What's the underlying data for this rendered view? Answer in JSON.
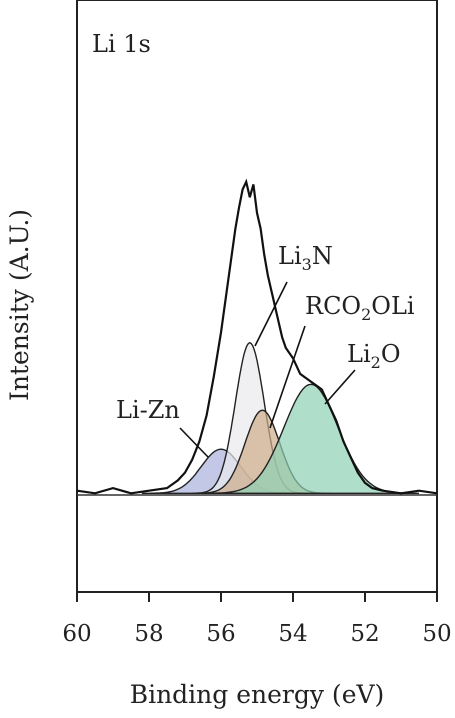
{
  "chart_data": {
    "type": "area",
    "panel_label": "Li 1s",
    "xlabel": "Binding energy (eV)",
    "ylabel": "Intensity (A.U.)",
    "xlim": [
      60,
      50
    ],
    "x_reversed": true,
    "x_ticks": [
      60,
      58,
      56,
      54,
      52,
      50
    ],
    "ylim": [
      -0.38,
      1.9
    ],
    "baseline": 0,
    "grid": false,
    "series": [
      {
        "name": "Li-Zn",
        "center": 56.0,
        "height": 0.17,
        "sigma": 0.55,
        "color": "#a9b0dd"
      },
      {
        "name": "Li3N",
        "center": 55.2,
        "height": 0.58,
        "sigma": 0.4,
        "color": "#e9e9ec"
      },
      {
        "name": "RCO2OLi",
        "center": 54.85,
        "height": 0.32,
        "sigma": 0.48,
        "color": "#cfac8a"
      },
      {
        "name": "Li2O",
        "center": 53.5,
        "height": 0.42,
        "sigma": 0.75,
        "color": "#8dd0b3"
      }
    ],
    "raw_envelope": {
      "x": [
        60.0,
        59.5,
        59.0,
        58.5,
        58.0,
        57.5,
        57.2,
        57.0,
        56.8,
        56.6,
        56.4,
        56.2,
        56.0,
        55.8,
        55.6,
        55.5,
        55.4,
        55.3,
        55.2,
        55.1,
        55.0,
        54.9,
        54.8,
        54.7,
        54.6,
        54.5,
        54.4,
        54.3,
        54.2,
        54.0,
        53.8,
        53.6,
        53.4,
        53.2,
        53.0,
        52.8,
        52.6,
        52.4,
        52.2,
        52.0,
        51.8,
        51.5,
        51.0,
        50.5,
        50.0
      ],
      "y": [
        0.01,
        0.0,
        0.02,
        0.0,
        0.01,
        0.02,
        0.05,
        0.08,
        0.13,
        0.2,
        0.3,
        0.45,
        0.62,
        0.82,
        1.02,
        1.1,
        1.17,
        1.2,
        1.14,
        1.19,
        1.08,
        1.02,
        0.92,
        0.84,
        0.78,
        0.72,
        0.66,
        0.6,
        0.56,
        0.52,
        0.46,
        0.44,
        0.42,
        0.4,
        0.34,
        0.28,
        0.2,
        0.14,
        0.08,
        0.04,
        0.02,
        0.01,
        0.0,
        0.01,
        0.0
      ]
    },
    "annotations": [
      {
        "text": "Li-Zn",
        "target_series": "Li-Zn"
      },
      {
        "text": "Li",
        "sub": "3",
        "tail": "N",
        "target_series": "Li3N"
      },
      {
        "text": "RCO",
        "sub": "2",
        "tail": "OLi",
        "target_series": "RCO2OLi"
      },
      {
        "text": "Li",
        "sub": "2",
        "tail": "O",
        "target_series": "Li2O"
      }
    ]
  }
}
